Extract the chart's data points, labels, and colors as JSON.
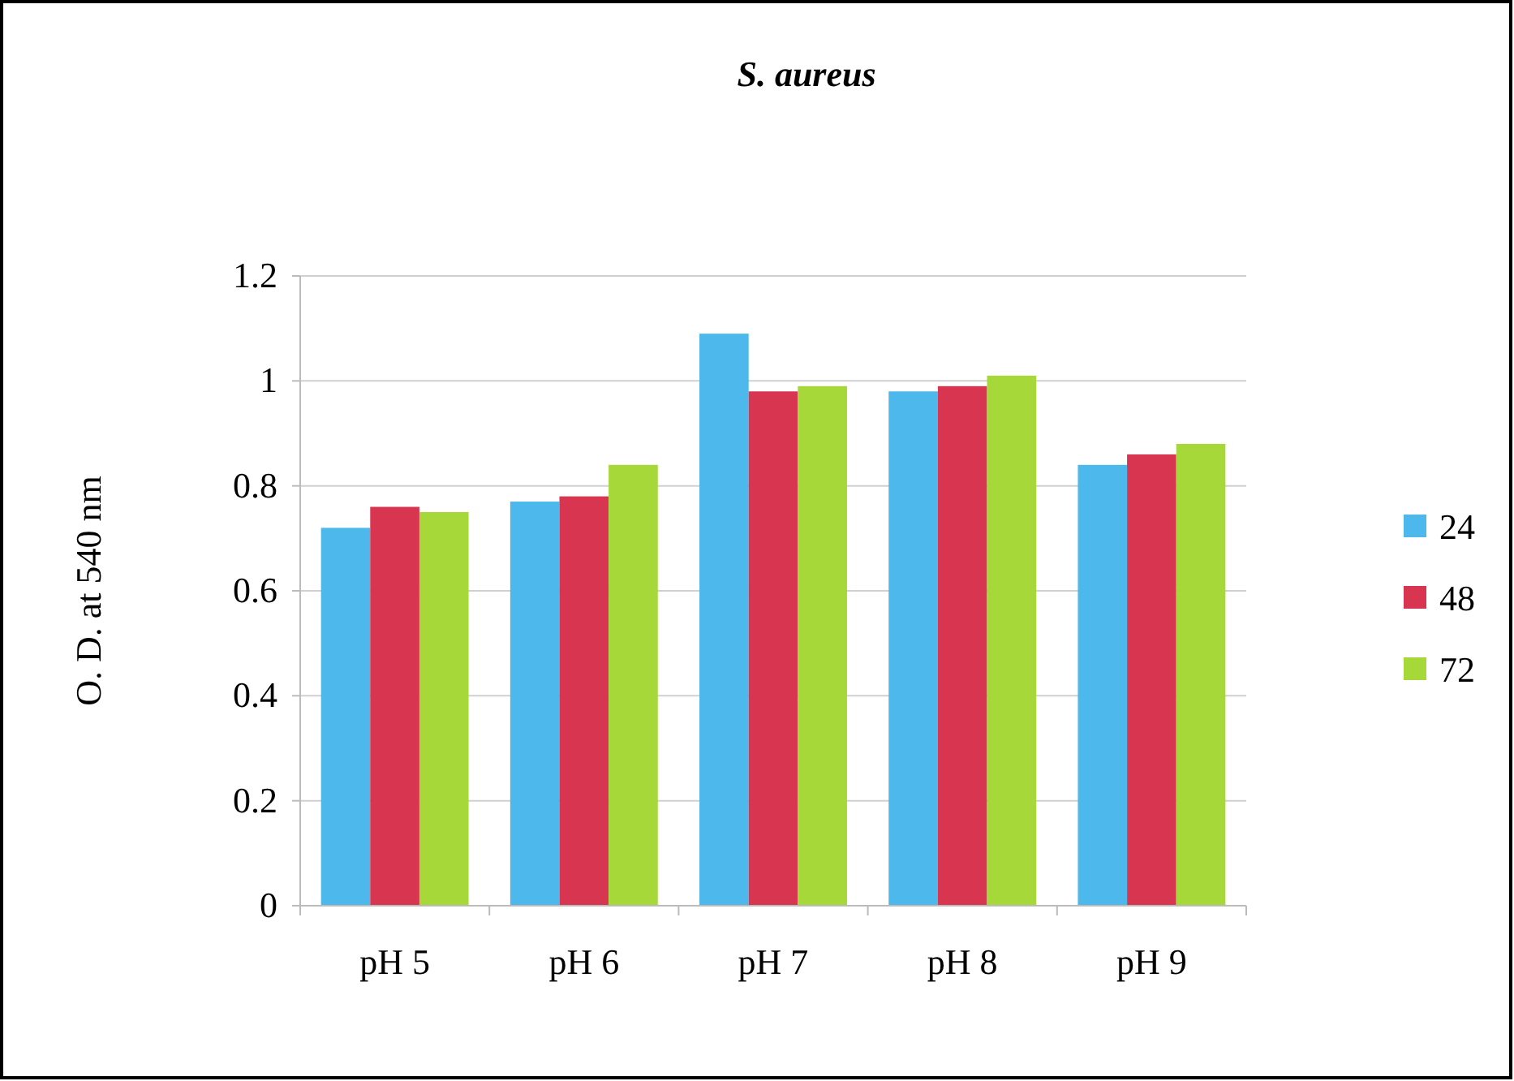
{
  "chart_data": {
    "type": "bar",
    "title": "S. aureus",
    "ylabel": "O. D. at 540 nm",
    "categories": [
      "pH 5",
      "pH 6",
      "pH 7",
      "pH 8",
      "pH 9"
    ],
    "series": [
      {
        "name": "24",
        "color": "#4cb8ec",
        "values": [
          0.72,
          0.77,
          1.09,
          0.98,
          0.84
        ]
      },
      {
        "name": "48",
        "color": "#d83550",
        "values": [
          0.76,
          0.78,
          0.98,
          0.99,
          0.86
        ]
      },
      {
        "name": "72",
        "color": "#a6d83a",
        "values": [
          0.75,
          0.84,
          0.99,
          1.01,
          0.88
        ]
      }
    ],
    "ylim": [
      0,
      1.2
    ],
    "yticks": [
      0,
      0.2,
      0.4,
      0.6,
      0.8,
      1,
      1.2
    ],
    "grid": "y",
    "legend": "right"
  }
}
